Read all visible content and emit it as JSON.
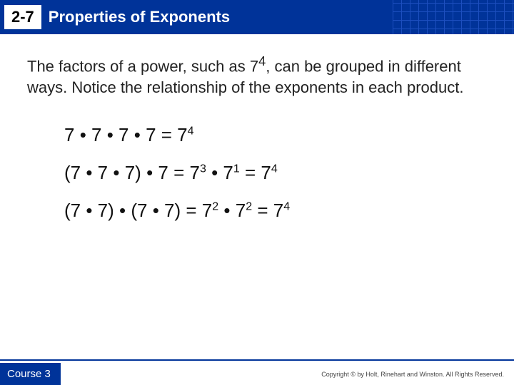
{
  "header": {
    "section_number": "2-7",
    "title": "Properties of Exponents",
    "bg_color": "#003399",
    "text_color": "#ffffff",
    "badge_bg": "#ffffff",
    "badge_text": "#000000"
  },
  "intro": {
    "text_before_sup": "The factors of a power, such as 7",
    "sup": "4",
    "text_after_sup": ", can be grouped in different ways. Notice the relationship of the exponents in each product.",
    "font_size": 22,
    "color": "#222222"
  },
  "equations": {
    "font_size": 26,
    "color": "#111111",
    "lines": [
      {
        "segments": [
          {
            "t": " 7 "
          },
          {
            "t": "•",
            "dot": true
          },
          {
            "t": " 7 "
          },
          {
            "t": "•",
            "dot": true
          },
          {
            "t": " 7 "
          },
          {
            "t": "•",
            "dot": true
          },
          {
            "t": " 7 = 7"
          },
          {
            "t": "4",
            "sup": true
          }
        ]
      },
      {
        "segments": [
          {
            "t": "(7 "
          },
          {
            "t": "•",
            "dot": true
          },
          {
            "t": " 7 "
          },
          {
            "t": "•",
            "dot": true
          },
          {
            "t": " 7) "
          },
          {
            "t": "•",
            "dot": true
          },
          {
            "t": " 7 = 7"
          },
          {
            "t": "3",
            "sup": true
          },
          {
            "t": "  "
          },
          {
            "t": "•",
            "dot": true
          },
          {
            "t": " 7"
          },
          {
            "t": "1",
            "sup": true
          },
          {
            "t": "  = 7"
          },
          {
            "t": "4",
            "sup": true
          }
        ]
      },
      {
        "segments": [
          {
            "t": "(7 "
          },
          {
            "t": "•",
            "dot": true
          },
          {
            "t": " 7) "
          },
          {
            "t": "•",
            "dot": true
          },
          {
            "t": " (7 "
          },
          {
            "t": "•",
            "dot": true
          },
          {
            "t": " 7) = 7"
          },
          {
            "t": "2",
            "sup": true
          },
          {
            "t": "  "
          },
          {
            "t": "•",
            "dot": true
          },
          {
            "t": " 7"
          },
          {
            "t": "2",
            "sup": true
          },
          {
            "t": "  = 7"
          },
          {
            "t": "4",
            "sup": true
          }
        ]
      }
    ]
  },
  "footer": {
    "course_label": "Course 3",
    "copyright": "Copyright © by Holt, Rinehart and Winston. All Rights Reserved.",
    "line_color": "#003399"
  }
}
